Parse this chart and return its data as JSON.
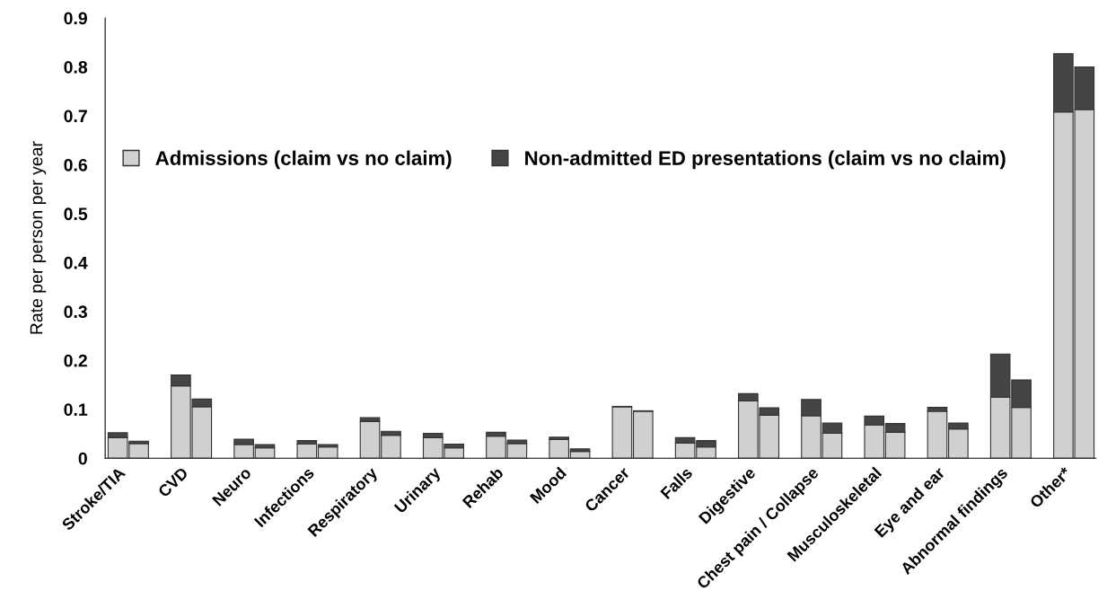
{
  "chart_data": {
    "type": "bar",
    "stacked": true,
    "ylabel": "Rate per person per year",
    "categories": [
      "Stroke/TIA",
      null,
      null,
      "CVD",
      null,
      null,
      "Neuro",
      null,
      null,
      "Infections",
      null,
      null,
      "Respiratory",
      null,
      null,
      "Urinary",
      null,
      null,
      "Rehab",
      null,
      null,
      "Mood",
      null,
      null,
      "Cancer",
      null,
      null,
      "Falls",
      null,
      null,
      "Digestive",
      null,
      null,
      "Chest pain / Collapse",
      null,
      null,
      "Musculoskeletal",
      null,
      null,
      "Eye and ear",
      null,
      null,
      "Abnormal findings",
      null,
      null,
      "Other*",
      null
    ],
    "series": [
      {
        "name": "Admissions (claim vs no claim)",
        "color": "#d0d0d0",
        "values": [
          0.042,
          0.03,
          null,
          0.148,
          0.105,
          null,
          0.028,
          0.021,
          null,
          0.029,
          0.023,
          null,
          0.075,
          0.047,
          null,
          0.042,
          0.021,
          null,
          0.045,
          0.03,
          null,
          0.038,
          0.014,
          null,
          0.105,
          0.096,
          null,
          0.031,
          0.023,
          null,
          0.117,
          0.088,
          null,
          0.087,
          0.051,
          null,
          0.068,
          0.053,
          null,
          0.096,
          0.06,
          null,
          0.125,
          0.104,
          null,
          0.708,
          0.713
        ]
      },
      {
        "name": "Non-admitted ED presentations (claim vs no claim)",
        "color": "#454545",
        "values": [
          0.01,
          0.005,
          null,
          0.022,
          0.016,
          null,
          0.011,
          0.007,
          null,
          0.007,
          0.005,
          null,
          0.008,
          0.008,
          null,
          0.009,
          0.008,
          null,
          0.008,
          0.007,
          null,
          0.005,
          0.005,
          null,
          0.001,
          0.001,
          null,
          0.011,
          0.013,
          null,
          0.015,
          0.015,
          null,
          0.033,
          0.021,
          null,
          0.018,
          0.018,
          null,
          0.008,
          0.012,
          null,
          0.088,
          0.056,
          null,
          0.119,
          0.087
        ]
      }
    ],
    "ylim": [
      0,
      0.9
    ],
    "yticks": [
      {
        "value": 0,
        "label": "0"
      },
      0.1,
      0.2,
      0.3,
      0.4,
      0.5,
      0.6,
      0.7,
      0.8,
      0.9
    ],
    "grid": false,
    "legend": "top left"
  }
}
